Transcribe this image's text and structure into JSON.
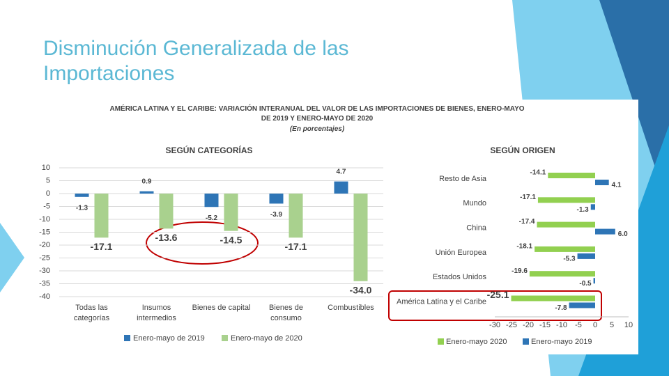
{
  "slide_title": "Disminución Generalizada de las Importaciones",
  "figure_title": "AMÉRICA LATINA Y EL CARIBE: VARIACIÓN INTERANUAL DEL VALOR DE LAS IMPORTACIONES DE BIENES, ENERO-MAYO DE 2019 Y ENERO-MAYO DE 2020",
  "figure_subtitle": "(En porcentajes)",
  "chart_data": [
    {
      "type": "bar",
      "title": "SEGÚN CATEGORÍAS",
      "categories": [
        "Todas las categorías",
        "Insumos intermedios",
        "Bienes de capital",
        "Bienes de consumo",
        "Combustibles"
      ],
      "series": [
        {
          "name": "Enero-mayo de 2019",
          "color": "#2e75b6",
          "values": [
            -1.3,
            0.9,
            -5.2,
            -3.9,
            4.7
          ]
        },
        {
          "name": "Enero-mayo de 2020",
          "color": "#a9d18e",
          "values": [
            -17.1,
            -13.6,
            -14.5,
            -17.1,
            -34.0
          ],
          "value_labels": [
            "-17.1",
            "-13.6",
            "-14.5",
            "-17.1",
            "-34.0"
          ]
        }
      ],
      "ylim": [
        -40,
        10
      ],
      "yticks": [
        -40,
        -35,
        -30,
        -25,
        -20,
        -15,
        -10,
        -5,
        0,
        5,
        10
      ],
      "grid": true
    },
    {
      "type": "hbar",
      "title": "SEGÚN ORIGEN",
      "categories": [
        "Resto de Asia",
        "Mundo",
        "China",
        "Unión Europea",
        "Estados Unidos",
        "América Latina y el Caribe"
      ],
      "series": [
        {
          "name": "Enero-mayo 2020",
          "color": "#92d050",
          "values": [
            -14.1,
            -17.1,
            -17.4,
            -18.1,
            -19.6,
            -25.1
          ]
        },
        {
          "name": "Enero-mayo 2019",
          "color": "#2e75b6",
          "values": [
            4.1,
            -1.3,
            6.0,
            -5.3,
            -0.5,
            -7.8
          ],
          "value_labels": [
            "4.1",
            "-1.3",
            "6.0",
            "-5.3",
            "-0.5",
            "-7.8"
          ]
        }
      ],
      "xlim": [
        -30,
        10
      ],
      "xticks": [
        -30,
        -25,
        -20,
        -15,
        -10,
        -5,
        0,
        5,
        10
      ],
      "grid": false
    }
  ]
}
